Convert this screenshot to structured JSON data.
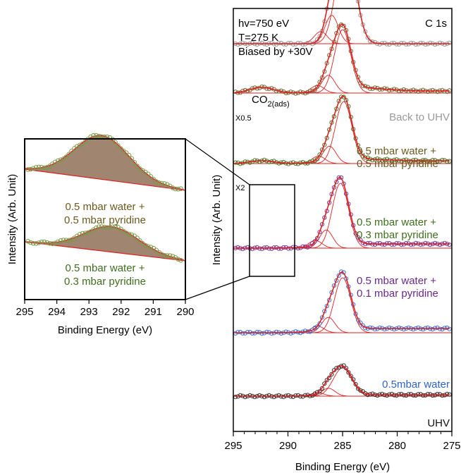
{
  "chart_data": [
    {
      "type": "line",
      "panel": "main",
      "xlabel": "Binding Energy (eV)",
      "ylabel": "Intensity  (Arb. Unit)",
      "xlim": [
        295,
        275
      ],
      "x_reversed": true,
      "x_ticks": [
        295,
        290,
        285,
        280,
        275
      ],
      "x_tick_labels": [
        "295",
        "290",
        "285",
        "280",
        "275"
      ],
      "annotations": {
        "header": [
          "hv=750 eV",
          "T=275 K",
          "Biased by +30V"
        ],
        "region": "C 1s",
        "co2_base": "CO",
        "co2_sub": "2(ads)",
        "scale_top": "X0.5",
        "scale_mid": "X2"
      },
      "series": [
        {
          "name": "Back to UHV",
          "color": "#999999",
          "label_color": "#999999",
          "label_lines": [
            "Back to UHV"
          ],
          "baseline": 5.5,
          "peak_x": 284.7,
          "peak_height": 144,
          "width": 0.85,
          "tail": 0,
          "co2_bump": 0
        },
        {
          "name": "0.5 mbar water + 0.5 mbar pyridine",
          "color": "#7a6a3a",
          "label_color": "#6b5a20",
          "label_lines": [
            "0.5 mbar water +",
            "0.5 mbar pyridine"
          ],
          "baseline": 4.8,
          "peak_x": 285.0,
          "peak_height": 90,
          "width": 0.75,
          "tail": 3,
          "co2_bump": 8
        },
        {
          "name": "0.5 mbar water + 0.3 mbar pyridine",
          "color": "#4a7a2a",
          "label_color": "#3f6f1f",
          "label_lines": [
            "0.5 mbar water +",
            "0.3 mbar pyridine"
          ],
          "baseline": 3.8,
          "peak_x": 284.9,
          "peak_height": 88,
          "width": 0.75,
          "tail": 4,
          "co2_bump": 4
        },
        {
          "name": "0.5 mbar water + 0.1 mbar pyridine",
          "color": "#7a3a9a",
          "label_color": "#6a2a8a",
          "label_lines": [
            "0.5 mbar water +",
            "0.1 mbar pyridine"
          ],
          "baseline": 2.6,
          "peak_x": 285.2,
          "peak_height": 92,
          "width": 0.75,
          "tail": 6,
          "co2_bump": 0
        },
        {
          "name": "0.5mbar water",
          "color": "#3a73d6",
          "label_color": "#2f62cc",
          "label_lines": [
            "0.5mbar water"
          ],
          "baseline": 1.4,
          "peak_x": 285.0,
          "peak_height": 78,
          "width": 0.75,
          "tail": 6,
          "co2_bump": 0
        },
        {
          "name": "UHV",
          "color": "#333333",
          "label_color": "#111111",
          "label_lines": [
            "UHV"
          ],
          "baseline": 0.5,
          "peak_x": 285.0,
          "peak_height": 40,
          "width": 0.85,
          "tail": 2,
          "co2_bump": 0
        }
      ]
    },
    {
      "type": "area",
      "panel": "inset",
      "xlabel": "Binding Energy (eV)",
      "ylabel": "Intensity  (Arb. Unit)",
      "xlim": [
        295,
        290
      ],
      "x_reversed": true,
      "x_ticks": [
        295,
        294,
        293,
        292,
        291,
        290
      ],
      "x_tick_labels": [
        "295",
        "294",
        "293",
        "292",
        "291",
        "290"
      ],
      "series": [
        {
          "name": "0.5 mbar water + 0.5 mbar pyridine",
          "label_lines": [
            "0.5 mbar water +",
            "0.5 mbar pyridine"
          ],
          "label_color": "#6b5a20",
          "peak_x": 292.6,
          "peak_height": 1.0,
          "fill_color": "#a08570"
        },
        {
          "name": "0.5 mbar water + 0.3 mbar pyridine",
          "label_lines": [
            "0.5 mbar water +",
            "0.3 mbar pyridine"
          ],
          "label_color": "#3f6f1f",
          "peak_x": 292.3,
          "peak_height": 0.55,
          "fill_color": "#a08570"
        }
      ]
    }
  ]
}
